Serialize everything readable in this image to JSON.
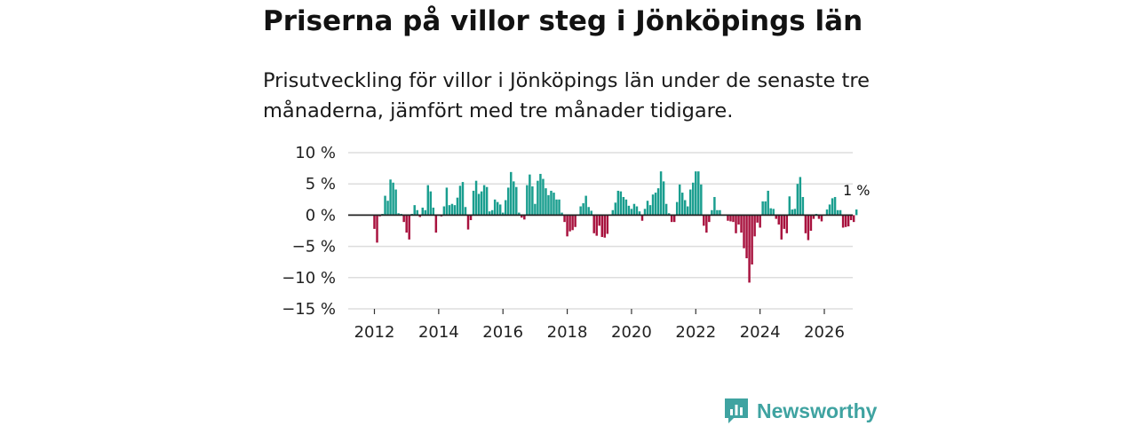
{
  "title": "Priserna på villor steg i Jönköpings län",
  "subtitle": "Prisutveckling för villor i Jönköpings län under de senaste tre månaderna, jämfört med tre månader tidigare.",
  "brand": {
    "name": "Newsworthy",
    "color": "#3fa3a1"
  },
  "colors": {
    "positive": "#1a9e8f",
    "negative": "#a8123e",
    "grid": "#dddddd",
    "zero_line": "#222222"
  },
  "chart_data": {
    "type": "bar",
    "title": "Priserna på villor steg i Jönköpings län",
    "ylabel": "",
    "xlabel": "",
    "unit": "%",
    "ylim": [
      -15,
      10
    ],
    "yticks": [
      10,
      5,
      0,
      -5,
      -10,
      -15
    ],
    "ytick_labels": [
      "10 %",
      "5 %",
      "0 %",
      "−5 %",
      "−10 %",
      "−15 %"
    ],
    "xticks": [
      2012,
      2014,
      2016,
      2018,
      2020,
      2022,
      2024,
      2026
    ],
    "x_start": 2012,
    "x_end": 2026.25,
    "step_months": 1,
    "values": [
      -2.2,
      -4.4,
      -0.2,
      0.2,
      3.1,
      2.3,
      5.7,
      5.2,
      4.1,
      0.3,
      0.2,
      -1.1,
      -2.8,
      -3.9,
      0.2,
      1.6,
      0.8,
      -0.3,
      1.2,
      0.8,
      4.8,
      3.8,
      1.2,
      -2.8,
      -0.1,
      -0.2,
      1.4,
      4.4,
      1.6,
      1.8,
      1.6,
      2.8,
      4.7,
      5.3,
      1.3,
      -2.3,
      -0.8,
      3.9,
      5.5,
      3.4,
      3.8,
      4.8,
      4.5,
      0.6,
      0.8,
      2.5,
      2.1,
      1.7,
      0.4,
      2.4,
      4.4,
      6.9,
      5.4,
      4.5,
      0.4,
      -0.4,
      -0.7,
      4.8,
      6.5,
      4.6,
      1.8,
      5.5,
      6.6,
      5.8,
      4.3,
      3.2,
      3.9,
      3.6,
      2.5,
      2.5,
      0.4,
      -1.1,
      -3.4,
      -2.6,
      -2.4,
      -1.9,
      0.1,
      1.4,
      1.9,
      3.1,
      1.3,
      0.7,
      -2.9,
      -3.3,
      -1.7,
      -3.5,
      -3.6,
      -3.0,
      0.1,
      0.8,
      2.0,
      3.9,
      3.8,
      2.9,
      2.5,
      1.5,
      1.0,
      1.8,
      1.4,
      0.6,
      -0.9,
      1.0,
      2.3,
      1.6,
      3.3,
      3.6,
      4.3,
      7.0,
      5.4,
      1.8,
      0.3,
      -1.1,
      -1.1,
      2.1,
      4.9,
      3.6,
      2.4,
      1.4,
      4.1,
      5.2,
      7.0,
      7.0,
      4.9,
      -1.7,
      -2.8,
      -1.1,
      0.8,
      2.9,
      0.8,
      0.8,
      0.1,
      0.1,
      -0.9,
      -1.0,
      -1.1,
      -2.9,
      -1.5,
      -2.8,
      -5.3,
      -6.9,
      -10.8,
      -7.9,
      -3.4,
      -1.2,
      -2.0,
      2.2,
      2.2,
      3.9,
      1.1,
      1.0,
      -0.6,
      -1.5,
      -3.9,
      -2.2,
      -2.9,
      3.0,
      0.9,
      1.0,
      5.0,
      6.1,
      2.9,
      -2.9,
      -4.0,
      -2.5,
      -0.6,
      0.2,
      -0.6,
      -1.0,
      0.1,
      0.9,
      1.7,
      2.7,
      2.9,
      0.8,
      0.8,
      -2.0,
      -1.9,
      -1.8,
      -0.8,
      -1.1,
      0.9
    ],
    "annotations": [
      {
        "label": "1 %",
        "at": "last"
      }
    ]
  }
}
